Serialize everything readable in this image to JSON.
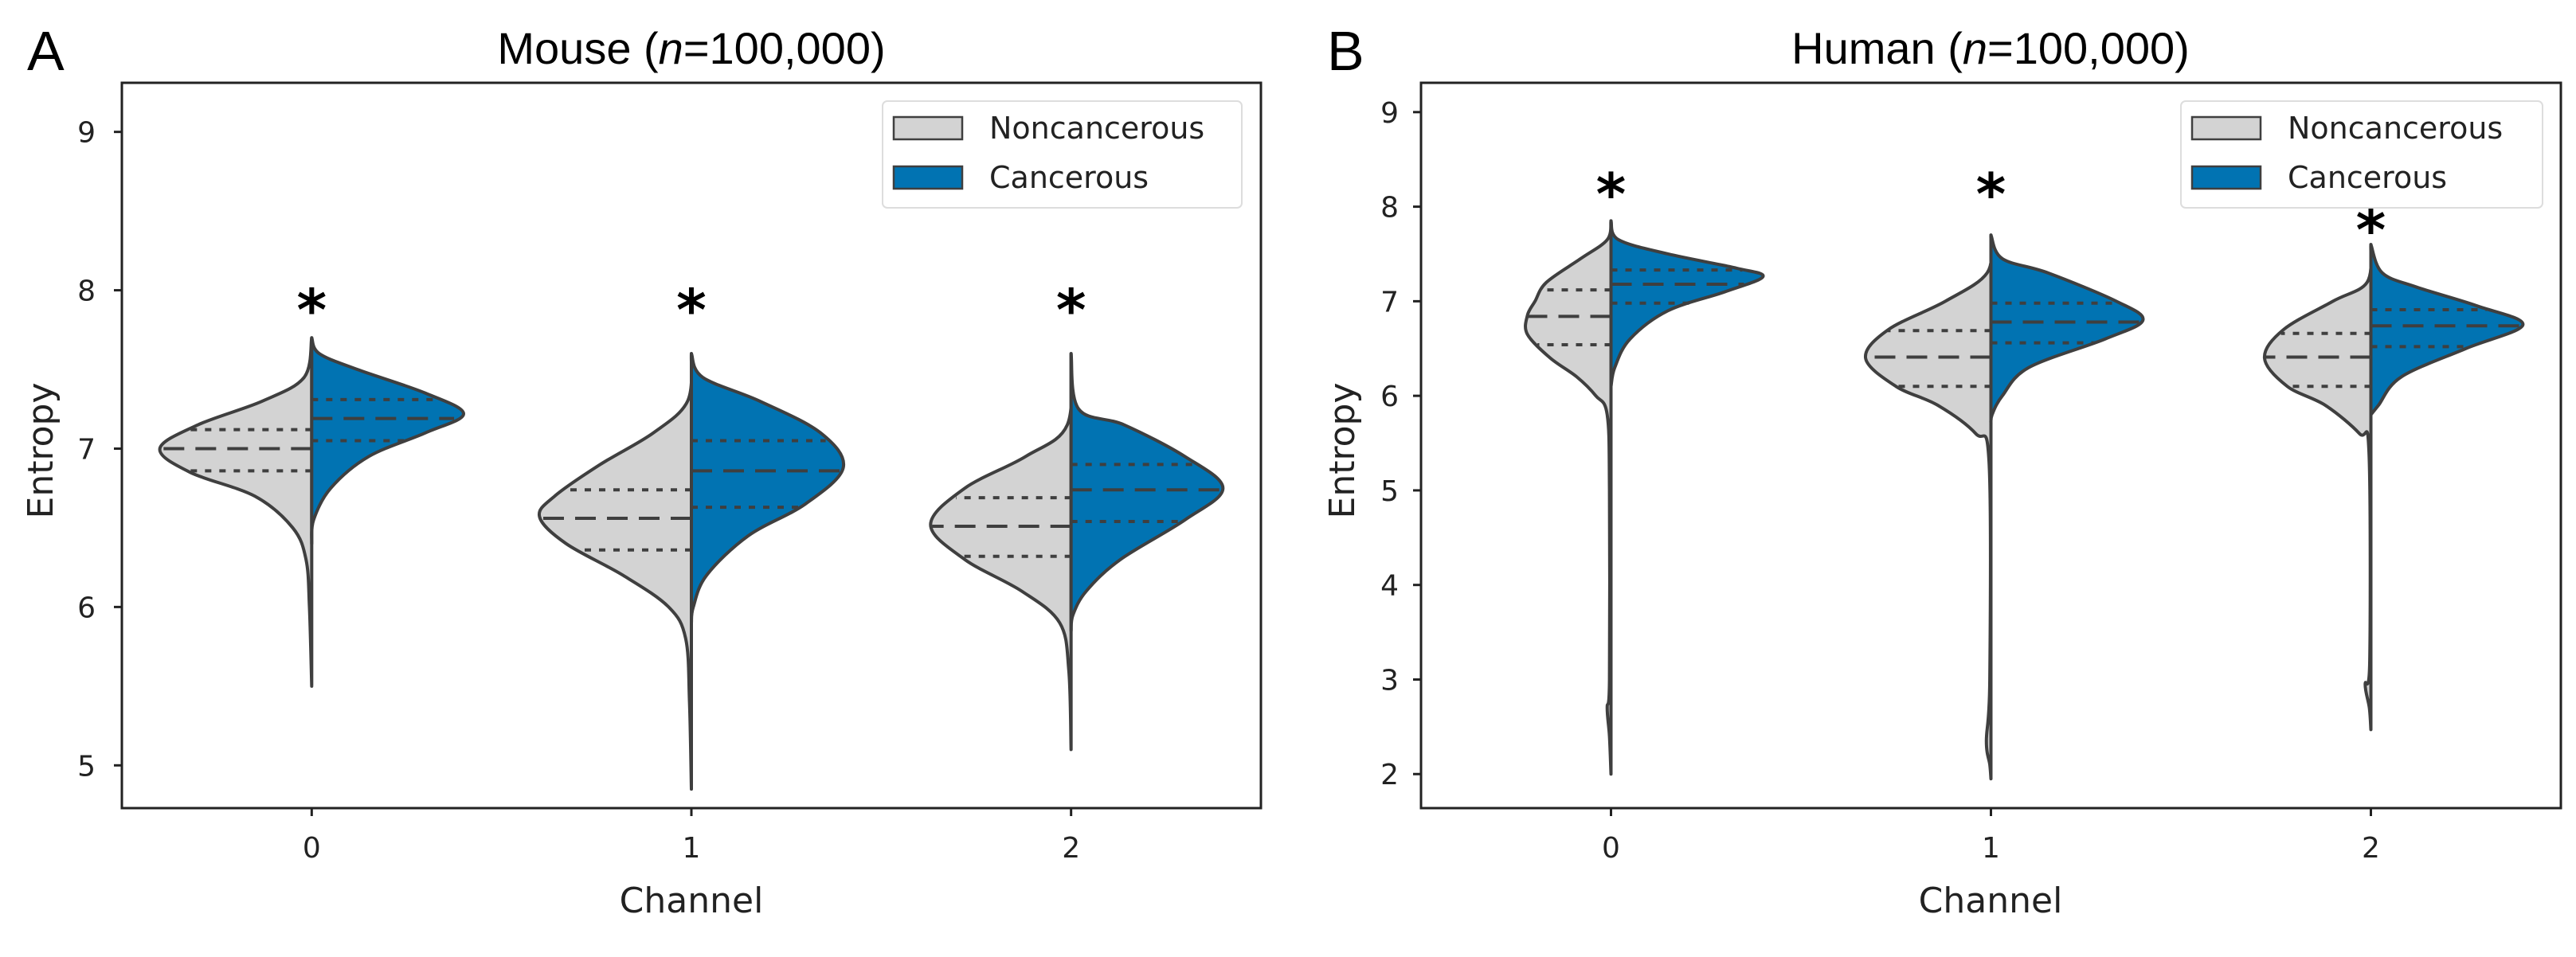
{
  "colors": {
    "noncancerous": "#d3d3d3",
    "cancerous": "#0173b2",
    "outline": "#3f3f3f"
  },
  "chart_data": [
    {
      "type": "violin",
      "panel_label": "A",
      "title_parts": {
        "prefix": "Mouse (",
        "italic": "n",
        "suffix": "=100,000)"
      },
      "xlabel": "Channel",
      "ylabel": "Entropy",
      "categories": [
        "0",
        "1",
        "2"
      ],
      "xlim": [
        -0.5,
        2.5
      ],
      "ylim": [
        4.73,
        9.31
      ],
      "yticks": [
        "5",
        "6",
        "7",
        "8",
        "9"
      ],
      "legend": {
        "placement": "top-right",
        "entries": [
          "Noncancerous",
          "Cancerous"
        ]
      },
      "annotations": [
        {
          "category": 0,
          "y": 7.94,
          "text": "*"
        },
        {
          "category": 1,
          "y": 7.94,
          "text": "*"
        },
        {
          "category": 2,
          "y": 7.94,
          "text": "*"
        }
      ],
      "series": [
        {
          "name": "Noncancerous",
          "side": "left",
          "quartiles": [
            [
              6.86,
              7.0,
              7.12
            ],
            [
              6.36,
              6.56,
              6.74
            ],
            [
              6.32,
              6.51,
              6.69
            ]
          ],
          "density": [
            [
              [
                7.7,
                0
              ],
              [
                7.45,
                0.02
              ],
              [
                7.3,
                0.13
              ],
              [
                7.15,
                0.3
              ],
              [
                7.0,
                0.4
              ],
              [
                6.85,
                0.32
              ],
              [
                6.7,
                0.15
              ],
              [
                6.5,
                0.05
              ],
              [
                6.3,
                0.015
              ],
              [
                6.0,
                0.006
              ],
              [
                5.5,
                0
              ]
            ],
            [
              [
                7.6,
                0
              ],
              [
                7.3,
                0.01
              ],
              [
                7.1,
                0.1
              ],
              [
                6.9,
                0.24
              ],
              [
                6.7,
                0.36
              ],
              [
                6.57,
                0.4
              ],
              [
                6.4,
                0.33
              ],
              [
                6.2,
                0.18
              ],
              [
                6.0,
                0.06
              ],
              [
                5.8,
                0.015
              ],
              [
                5.4,
                0.005
              ],
              [
                4.85,
                0
              ]
            ],
            [
              [
                7.6,
                0
              ],
              [
                7.15,
                0.01
              ],
              [
                6.95,
                0.12
              ],
              [
                6.75,
                0.28
              ],
              [
                6.52,
                0.37
              ],
              [
                6.3,
                0.28
              ],
              [
                6.1,
                0.13
              ],
              [
                5.9,
                0.03
              ],
              [
                5.6,
                0.006
              ],
              [
                5.1,
                0
              ]
            ]
          ]
        },
        {
          "name": "Cancerous",
          "side": "right",
          "quartiles": [
            [
              7.05,
              7.19,
              7.31
            ],
            [
              6.63,
              6.86,
              7.05
            ],
            [
              6.54,
              6.74,
              6.9
            ]
          ],
          "density": [
            [
              [
                7.7,
                0
              ],
              [
                7.6,
                0.02
              ],
              [
                7.5,
                0.12
              ],
              [
                7.35,
                0.3
              ],
              [
                7.22,
                0.4
              ],
              [
                7.1,
                0.3
              ],
              [
                6.95,
                0.15
              ],
              [
                6.75,
                0.05
              ],
              [
                6.55,
                0.005
              ],
              [
                6.4,
                0
              ]
            ],
            [
              [
                7.6,
                0
              ],
              [
                7.45,
                0.03
              ],
              [
                7.3,
                0.18
              ],
              [
                7.1,
                0.34
              ],
              [
                6.88,
                0.4
              ],
              [
                6.65,
                0.3
              ],
              [
                6.45,
                0.15
              ],
              [
                6.2,
                0.04
              ],
              [
                6.0,
                0.005
              ],
              [
                5.9,
                0
              ]
            ],
            [
              [
                7.6,
                0
              ],
              [
                7.25,
                0.02
              ],
              [
                7.15,
                0.14
              ],
              [
                6.95,
                0.3
              ],
              [
                6.75,
                0.4
              ],
              [
                6.55,
                0.3
              ],
              [
                6.3,
                0.13
              ],
              [
                6.1,
                0.04
              ],
              [
                5.95,
                0.005
              ],
              [
                5.85,
                0
              ]
            ]
          ]
        }
      ]
    },
    {
      "type": "violin",
      "panel_label": "B",
      "title_parts": {
        "prefix": "Human (",
        "italic": "n",
        "suffix": "=100,000)"
      },
      "xlabel": "Channel",
      "ylabel": "Entropy",
      "categories": [
        "0",
        "1",
        "2"
      ],
      "xlim": [
        -0.5,
        2.5
      ],
      "ylim": [
        1.64,
        9.31
      ],
      "yticks": [
        "2",
        "3",
        "4",
        "5",
        "6",
        "7",
        "8",
        "9"
      ],
      "legend": {
        "placement": "top-right",
        "entries": [
          "Noncancerous",
          "Cancerous"
        ]
      },
      "annotations": [
        {
          "category": 0,
          "y": 8.24,
          "text": "*"
        },
        {
          "category": 1,
          "y": 8.24,
          "text": "*"
        },
        {
          "category": 2,
          "y": 7.86,
          "text": "*"
        }
      ],
      "series": [
        {
          "name": "Noncancerous",
          "side": "left",
          "quartiles": [
            [
              6.54,
              6.84,
              7.12
            ],
            [
              6.1,
              6.41,
              6.69
            ],
            [
              6.1,
              6.41,
              6.66
            ]
          ],
          "density": [
            [
              [
                7.85,
                0
              ],
              [
                7.65,
                0.01
              ],
              [
                7.45,
                0.08
              ],
              [
                7.2,
                0.17
              ],
              [
                7.0,
                0.2
              ],
              [
                6.85,
                0.22
              ],
              [
                6.65,
                0.22
              ],
              [
                6.4,
                0.16
              ],
              [
                6.2,
                0.09
              ],
              [
                6.0,
                0.04
              ],
              [
                5.8,
                0.01
              ],
              [
                5.0,
                0.004
              ],
              [
                3.0,
                0.004
              ],
              [
                2.7,
                0.01
              ],
              [
                2.4,
                0.004
              ],
              [
                2.0,
                0
              ]
            ],
            [
              [
                7.7,
                0
              ],
              [
                7.3,
                0.01
              ],
              [
                7.0,
                0.12
              ],
              [
                6.7,
                0.27
              ],
              [
                6.4,
                0.33
              ],
              [
                6.1,
                0.25
              ],
              [
                5.9,
                0.14
              ],
              [
                5.6,
                0.04
              ],
              [
                5.3,
                0.005
              ],
              [
                3.0,
                0.003
              ],
              [
                2.35,
                0.012
              ],
              [
                2.1,
                0.003
              ],
              [
                1.95,
                0
              ]
            ],
            [
              [
                7.6,
                0
              ],
              [
                7.2,
                0.01
              ],
              [
                7.0,
                0.1
              ],
              [
                6.7,
                0.23
              ],
              [
                6.4,
                0.28
              ],
              [
                6.1,
                0.22
              ],
              [
                5.9,
                0.12
              ],
              [
                5.6,
                0.03
              ],
              [
                5.4,
                0.005
              ],
              [
                3.2,
                0.003
              ],
              [
                2.95,
                0.015
              ],
              [
                2.7,
                0.004
              ],
              [
                2.47,
                0
              ]
            ]
          ]
        },
        {
          "name": "Cancerous",
          "side": "right",
          "quartiles": [
            [
              6.98,
              7.18,
              7.33
            ],
            [
              6.56,
              6.78,
              6.98
            ],
            [
              6.52,
              6.74,
              6.91
            ]
          ],
          "density": [
            [
              [
                7.85,
                0
              ],
              [
                7.65,
                0.02
              ],
              [
                7.5,
                0.15
              ],
              [
                7.35,
                0.33
              ],
              [
                7.26,
                0.4
              ],
              [
                7.1,
                0.3
              ],
              [
                6.9,
                0.15
              ],
              [
                6.6,
                0.05
              ],
              [
                6.3,
                0.01
              ],
              [
                6.1,
                0
              ]
            ],
            [
              [
                7.7,
                0
              ],
              [
                7.45,
                0.03
              ],
              [
                7.3,
                0.15
              ],
              [
                7.0,
                0.33
              ],
              [
                6.8,
                0.4
              ],
              [
                6.6,
                0.3
              ],
              [
                6.3,
                0.1
              ],
              [
                6.0,
                0.03
              ],
              [
                5.8,
                0.003
              ],
              [
                5.7,
                0
              ]
            ],
            [
              [
                7.6,
                0
              ],
              [
                7.3,
                0.03
              ],
              [
                7.15,
                0.12
              ],
              [
                6.95,
                0.28
              ],
              [
                6.75,
                0.4
              ],
              [
                6.5,
                0.25
              ],
              [
                6.2,
                0.08
              ],
              [
                5.9,
                0.02
              ],
              [
                5.8,
                0
              ]
            ]
          ]
        }
      ]
    }
  ]
}
